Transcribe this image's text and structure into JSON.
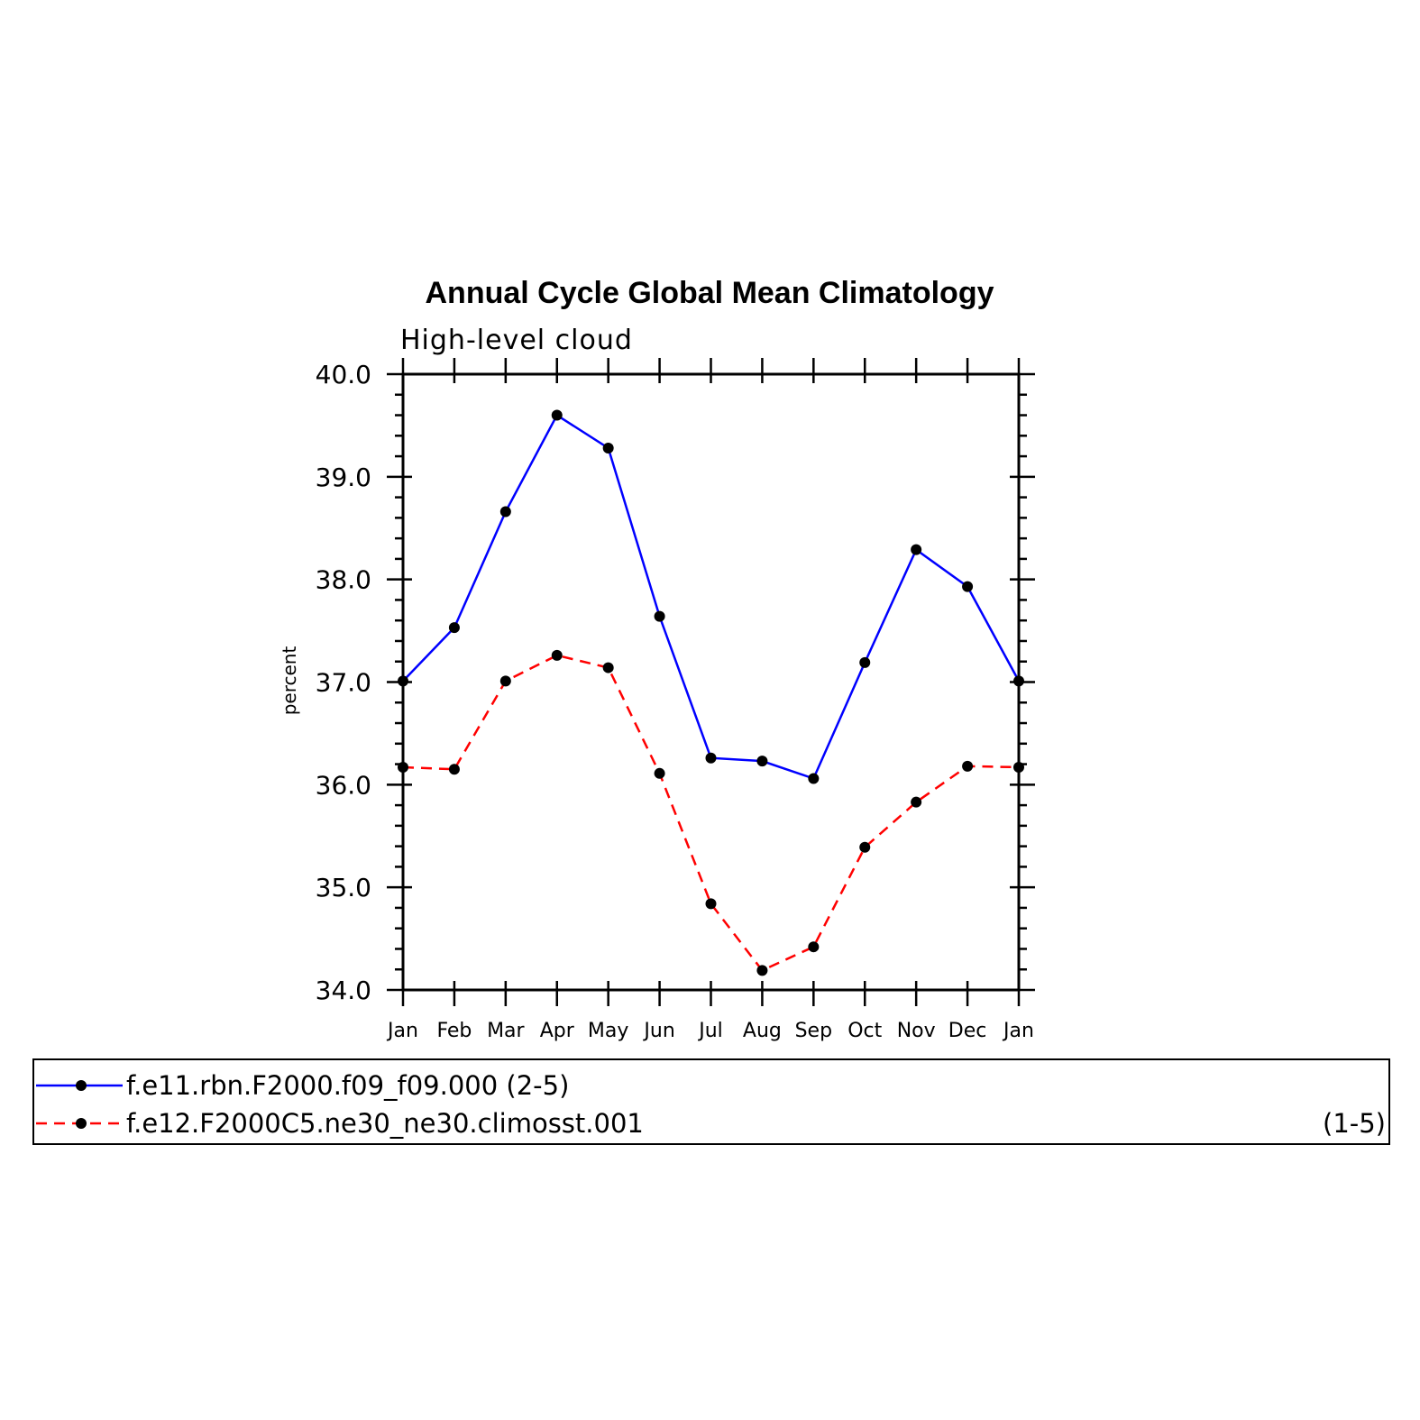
{
  "chart_data": {
    "type": "line",
    "title": "Annual Cycle Global Mean Climatology",
    "subtitle": "High-level cloud",
    "xlabel": "",
    "ylabel": "percent",
    "categories": [
      "Jan",
      "Feb",
      "Mar",
      "Apr",
      "May",
      "Jun",
      "Jul",
      "Aug",
      "Sep",
      "Oct",
      "Nov",
      "Dec",
      "Jan"
    ],
    "ylim": [
      34.0,
      40.0
    ],
    "yticks": [
      "34.0",
      "35.0",
      "36.0",
      "37.0",
      "38.0",
      "39.0",
      "40.0"
    ],
    "grid": false,
    "legend_position": "bottom",
    "series": [
      {
        "name": "f.e11.rbn.F2000.f09_f09.000 (2-5)",
        "legend_suffix": "",
        "color": "#0000ff",
        "dashed": false,
        "values": [
          37.01,
          37.53,
          38.66,
          39.6,
          39.28,
          37.64,
          36.26,
          36.23,
          36.06,
          37.19,
          38.29,
          37.93,
          37.01
        ]
      },
      {
        "name": "f.e12.F2000C5.ne30_ne30.climosst.001",
        "legend_suffix": "(1-5)",
        "color": "#ff0000",
        "dashed": true,
        "values": [
          36.17,
          36.15,
          37.01,
          37.26,
          37.14,
          36.11,
          34.84,
          34.19,
          34.42,
          35.39,
          35.83,
          36.18,
          36.17
        ]
      }
    ],
    "marker_color": "#000000"
  }
}
